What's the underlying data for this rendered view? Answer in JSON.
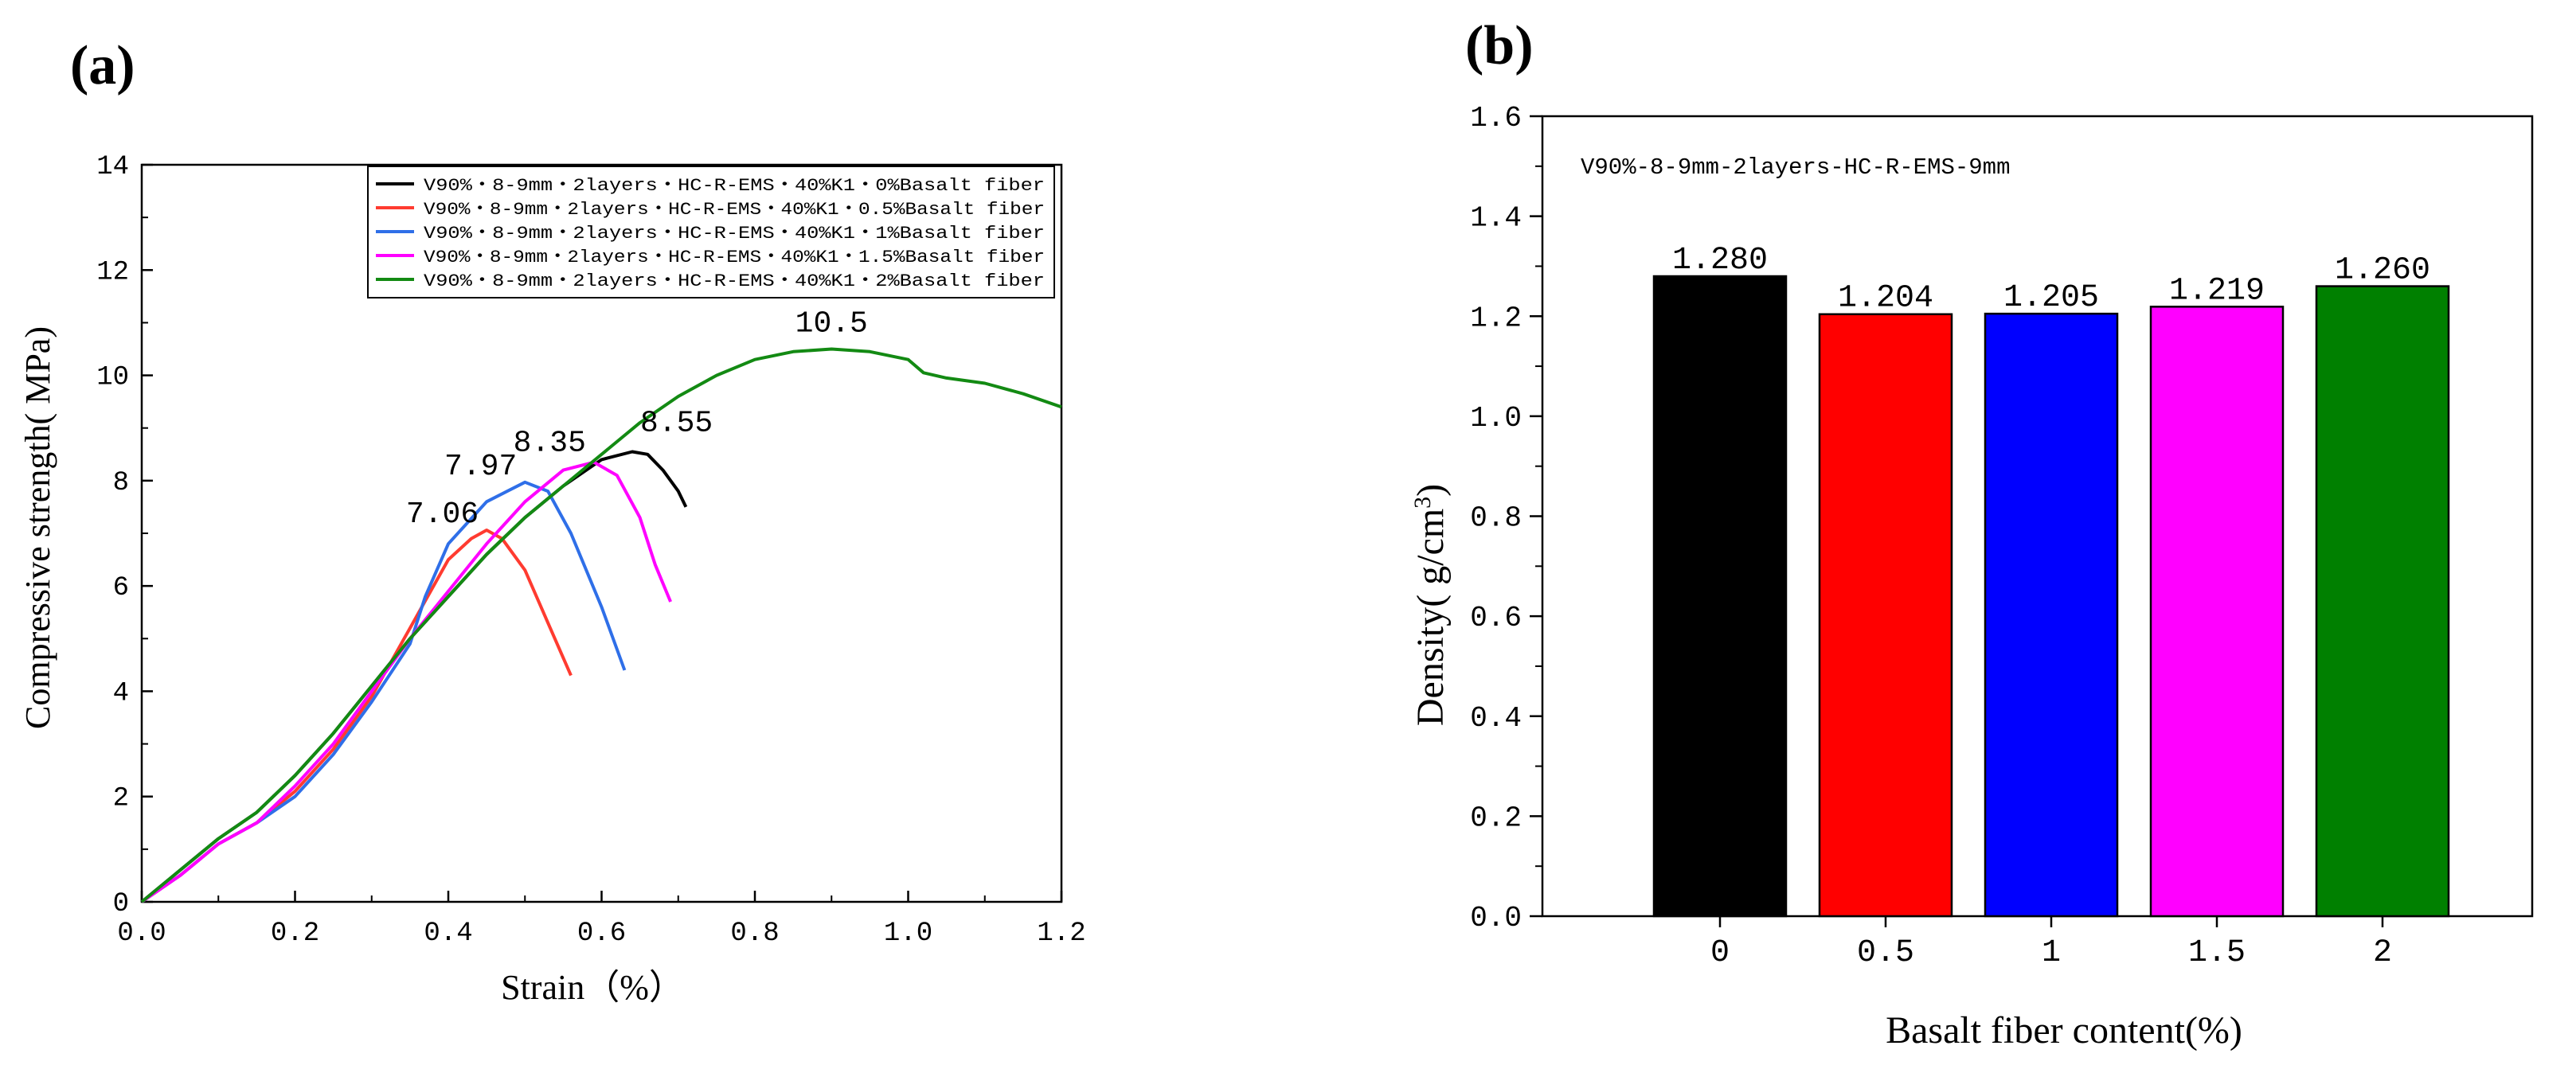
{
  "panel_labels": {
    "a": "(a)",
    "b": "(b)"
  },
  "colors": {
    "black": "#000000",
    "red": "#ff3b30",
    "blue": "#2f6fe8",
    "magenta": "#ff00ff",
    "green": "#138a13"
  },
  "chart_data": [
    {
      "type": "line",
      "title": "",
      "xlabel": "Strain（%）",
      "ylabel": "Compressive strength( MPa)",
      "xlim": [
        0.0,
        1.2
      ],
      "ylim": [
        0,
        14
      ],
      "xticks": [
        0.0,
        0.2,
        0.4,
        0.6,
        0.8,
        1.0,
        1.2
      ],
      "xtick_labels": [
        "0.0",
        "0.2",
        "0.4",
        "0.6",
        "0.8",
        "1.0",
        "1.2"
      ],
      "yticks": [
        0,
        2,
        4,
        6,
        8,
        10,
        12,
        14
      ],
      "ytick_labels": [
        "0",
        "2",
        "4",
        "6",
        "8",
        "10",
        "12",
        "14"
      ],
      "legend_position": "top-right",
      "series": [
        {
          "name": "V90%・8-9mm・2layers・HC-R-EMS・40%K1・0%Basalt fiber",
          "color": "#000000",
          "peak_label": "8.55",
          "x": [
            0,
            0.05,
            0.1,
            0.15,
            0.2,
            0.25,
            0.3,
            0.35,
            0.4,
            0.45,
            0.5,
            0.55,
            0.6,
            0.64,
            0.66,
            0.68,
            0.7,
            0.71
          ],
          "y": [
            0,
            0.6,
            1.2,
            1.7,
            2.4,
            3.2,
            4.1,
            5.0,
            5.8,
            6.6,
            7.3,
            7.9,
            8.4,
            8.55,
            8.5,
            8.2,
            7.8,
            7.5
          ]
        },
        {
          "name": "V90%・8-9mm・2layers・HC-R-EMS・40%K1・0.5%Basalt fiber",
          "color": "#ff3b30",
          "peak_label": "7.06",
          "x": [
            0,
            0.05,
            0.1,
            0.15,
            0.2,
            0.25,
            0.3,
            0.35,
            0.4,
            0.43,
            0.45,
            0.47,
            0.5,
            0.53,
            0.56
          ],
          "y": [
            0,
            0.5,
            1.1,
            1.5,
            2.1,
            2.9,
            3.9,
            5.2,
            6.5,
            6.9,
            7.06,
            6.9,
            6.3,
            5.3,
            4.3
          ]
        },
        {
          "name": "V90%・8-9mm・2layers・HC-R-EMS・40%K1・1%Basalt fiber",
          "color": "#2f6fe8",
          "peak_label": "7.97",
          "x": [
            0,
            0.05,
            0.1,
            0.15,
            0.2,
            0.25,
            0.3,
            0.35,
            0.37,
            0.4,
            0.45,
            0.5,
            0.53,
            0.56,
            0.6,
            0.63
          ],
          "y": [
            0,
            0.5,
            1.1,
            1.5,
            2.0,
            2.8,
            3.8,
            4.9,
            5.8,
            6.8,
            7.6,
            7.97,
            7.8,
            7.0,
            5.6,
            4.4
          ]
        },
        {
          "name": "V90%・8-9mm・2layers・HC-R-EMS・40%K1・1.5%Basalt fiber",
          "color": "#ff00ff",
          "peak_label": "8.35",
          "x": [
            0,
            0.05,
            0.1,
            0.15,
            0.2,
            0.25,
            0.3,
            0.35,
            0.4,
            0.45,
            0.5,
            0.55,
            0.59,
            0.62,
            0.65,
            0.67,
            0.69
          ],
          "y": [
            0,
            0.5,
            1.1,
            1.5,
            2.2,
            3.0,
            4.0,
            5.0,
            5.9,
            6.8,
            7.6,
            8.2,
            8.35,
            8.1,
            7.3,
            6.4,
            5.7
          ]
        },
        {
          "name": "V90%・8-9mm・2layers・HC-R-EMS・40%K1・2%Basalt fiber",
          "color": "#138a13",
          "peak_label": "10.5",
          "x": [
            0,
            0.05,
            0.1,
            0.15,
            0.2,
            0.25,
            0.3,
            0.35,
            0.4,
            0.45,
            0.5,
            0.55,
            0.6,
            0.65,
            0.7,
            0.75,
            0.8,
            0.85,
            0.9,
            0.95,
            1.0,
            1.02,
            1.05,
            1.1,
            1.15,
            1.2
          ],
          "y": [
            0,
            0.6,
            1.2,
            1.7,
            2.4,
            3.2,
            4.1,
            5.0,
            5.8,
            6.6,
            7.3,
            7.9,
            8.5,
            9.1,
            9.6,
            10.0,
            10.3,
            10.45,
            10.5,
            10.45,
            10.3,
            10.05,
            9.95,
            9.85,
            9.65,
            9.4
          ]
        }
      ]
    },
    {
      "type": "bar",
      "title": "",
      "annotation": "V90%-8-9mm-2layers-HC-R-EMS-9mm",
      "xlabel": "Basalt fiber content(%)",
      "ylabel_prefix": "Density( g/cm",
      "ylabel_sup": "3",
      "ylabel_suffix": ")",
      "ylim": [
        0.0,
        1.6
      ],
      "yticks": [
        0.0,
        0.2,
        0.4,
        0.6,
        0.8,
        1.0,
        1.2,
        1.4,
        1.6
      ],
      "ytick_labels": [
        "0.0",
        "0.2",
        "0.4",
        "0.6",
        "0.8",
        "1.0",
        "1.2",
        "1.4",
        "1.6"
      ],
      "categories": [
        "0",
        "0.5",
        "1",
        "1.5",
        "2"
      ],
      "values": [
        1.28,
        1.204,
        1.205,
        1.219,
        1.26
      ],
      "value_labels": [
        "1.280",
        "1.204",
        "1.205",
        "1.219",
        "1.260"
      ],
      "colors": [
        "#000000",
        "#ff0000",
        "#0000ff",
        "#ff00ff",
        "#008000"
      ]
    }
  ]
}
